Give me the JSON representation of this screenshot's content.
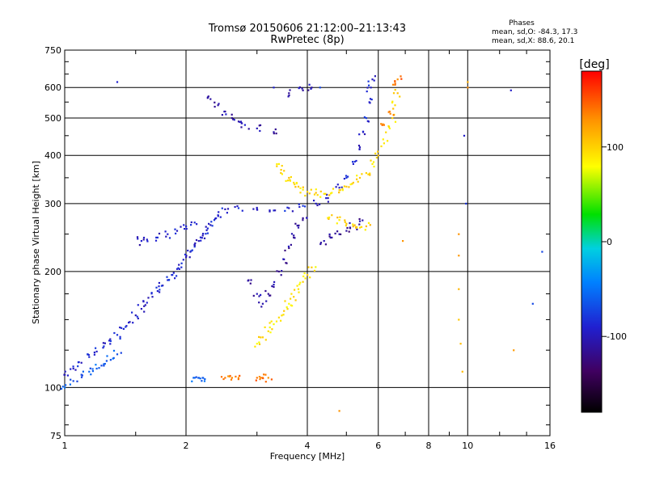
{
  "chart_data": {
    "type": "scatter",
    "title": "Tromsø 20150606 21:12:00–21:13:43",
    "subtitle": "RwPretec (8p)",
    "xlabel": "Frequency [MHz]",
    "ylabel": "Stationary phase Virtual Height [km]",
    "x_scale": "log",
    "y_scale": "log",
    "xlim": [
      1,
      16
    ],
    "ylim": [
      75,
      750
    ],
    "x_ticks": [
      1,
      2,
      4,
      6,
      8,
      10,
      16
    ],
    "x_tick_labels": [
      "1",
      "2",
      "4",
      "6",
      "8",
      "10",
      "16"
    ],
    "y_ticks": [
      75,
      100,
      200,
      300,
      400,
      500,
      600,
      750
    ],
    "y_tick_labels": [
      "75",
      "100",
      "200",
      "300",
      "400",
      "500",
      "600",
      "750"
    ],
    "grid": true,
    "phase_info": {
      "title": "Phases",
      "line_o": "mean, sd,O: -84.3, 17.3",
      "line_x": "mean, sd,X:  88.6, 20.1"
    },
    "colorbar": {
      "label": "[deg]",
      "range": [
        -180,
        180
      ],
      "ticks": [
        100,
        0,
        -100
      ],
      "tick_labels": [
        "100",
        "0",
        "-100"
      ]
    },
    "traces": [
      {
        "mode": "O",
        "phase": -90,
        "points": [
          [
            1.0,
            108
          ],
          [
            1.05,
            112
          ],
          [
            1.1,
            116
          ],
          [
            1.15,
            120
          ],
          [
            1.2,
            124
          ],
          [
            1.25,
            128
          ],
          [
            1.3,
            132
          ],
          [
            1.35,
            137
          ],
          [
            1.4,
            142
          ],
          [
            1.45,
            148
          ],
          [
            1.5,
            154
          ],
          [
            1.55,
            160
          ],
          [
            1.6,
            166
          ],
          [
            1.65,
            172
          ],
          [
            1.7,
            178
          ],
          [
            1.75,
            184
          ],
          [
            1.8,
            190
          ],
          [
            1.85,
            196
          ],
          [
            1.9,
            203
          ],
          [
            1.95,
            210
          ],
          [
            2.0,
            218
          ],
          [
            2.05,
            225
          ],
          [
            2.1,
            232
          ],
          [
            2.15,
            240
          ],
          [
            2.2,
            248
          ],
          [
            2.25,
            256
          ],
          [
            2.3,
            264
          ],
          [
            2.35,
            272
          ],
          [
            2.4,
            280
          ],
          [
            2.5,
            290
          ],
          [
            2.7,
            292
          ],
          [
            3.0,
            290
          ],
          [
            3.3,
            288
          ],
          [
            3.6,
            292
          ],
          [
            3.9,
            296
          ],
          [
            4.2,
            300
          ],
          [
            4.5,
            310
          ],
          [
            4.8,
            330
          ],
          [
            5.0,
            350
          ],
          [
            5.2,
            380
          ],
          [
            5.4,
            420
          ],
          [
            5.5,
            460
          ],
          [
            5.6,
            500
          ],
          [
            5.7,
            550
          ],
          [
            5.75,
            600
          ],
          [
            5.8,
            630
          ]
        ]
      },
      {
        "mode": "O",
        "phase": -95,
        "points": [
          [
            1.55,
            240
          ],
          [
            1.6,
            242
          ],
          [
            1.7,
            245
          ],
          [
            1.8,
            250
          ],
          [
            1.9,
            255
          ],
          [
            2.0,
            262
          ],
          [
            2.1,
            268
          ]
        ]
      },
      {
        "mode": "O",
        "phase": -105,
        "points": [
          [
            2.3,
            560
          ],
          [
            2.4,
            540
          ],
          [
            2.5,
            520
          ],
          [
            2.6,
            500
          ],
          [
            2.7,
            490
          ],
          [
            2.8,
            480
          ],
          [
            3.0,
            470
          ],
          [
            3.3,
            460
          ],
          [
            3.6,
            580
          ],
          [
            3.9,
            590
          ],
          [
            4.1,
            600
          ]
        ]
      },
      {
        "mode": "O",
        "phase": -110,
        "points": [
          [
            2.9,
            190
          ],
          [
            3.0,
            175
          ],
          [
            3.1,
            165
          ],
          [
            3.2,
            175
          ],
          [
            3.3,
            185
          ],
          [
            3.4,
            200
          ],
          [
            3.5,
            215
          ],
          [
            3.6,
            230
          ],
          [
            3.7,
            245
          ],
          [
            3.8,
            260
          ],
          [
            3.9,
            275
          ]
        ]
      },
      {
        "mode": "O",
        "phase": -115,
        "points": [
          [
            4.4,
            240
          ],
          [
            4.6,
            245
          ],
          [
            4.8,
            250
          ],
          [
            5.0,
            255
          ],
          [
            5.2,
            262
          ],
          [
            5.4,
            270
          ]
        ]
      },
      {
        "mode": "X",
        "phase": 90,
        "points": [
          [
            3.0,
            130
          ],
          [
            3.1,
            135
          ],
          [
            3.2,
            140
          ],
          [
            3.3,
            146
          ],
          [
            3.4,
            152
          ],
          [
            3.5,
            158
          ],
          [
            3.6,
            165
          ],
          [
            3.7,
            172
          ],
          [
            3.8,
            180
          ],
          [
            3.9,
            188
          ],
          [
            4.0,
            196
          ],
          [
            4.1,
            205
          ]
        ]
      },
      {
        "mode": "X",
        "phase": 95,
        "points": [
          [
            3.4,
            380
          ],
          [
            3.5,
            365
          ],
          [
            3.6,
            350
          ],
          [
            3.7,
            340
          ],
          [
            3.8,
            332
          ],
          [
            3.9,
            326
          ],
          [
            4.0,
            322
          ],
          [
            4.2,
            320
          ],
          [
            4.4,
            318
          ],
          [
            4.6,
            320
          ],
          [
            4.8,
            325
          ],
          [
            5.0,
            332
          ],
          [
            5.2,
            340
          ],
          [
            5.4,
            350
          ],
          [
            5.6,
            360
          ],
          [
            5.8,
            380
          ],
          [
            6.0,
            400
          ],
          [
            6.2,
            430
          ],
          [
            6.4,
            470
          ],
          [
            6.5,
            500
          ],
          [
            6.6,
            540
          ],
          [
            6.7,
            580
          ]
        ]
      },
      {
        "mode": "X",
        "phase": 100,
        "points": [
          [
            4.6,
            280
          ],
          [
            4.8,
            272
          ],
          [
            5.0,
            266
          ],
          [
            5.2,
            262
          ],
          [
            5.4,
            260
          ],
          [
            5.6,
            262
          ]
        ]
      },
      {
        "mode": "X",
        "phase": 140,
        "points": [
          [
            2.5,
            106
          ],
          [
            2.6,
            106
          ],
          [
            2.7,
            106
          ],
          [
            3.0,
            106
          ],
          [
            3.1,
            106
          ],
          [
            3.2,
            106
          ],
          [
            6.2,
            480
          ],
          [
            6.4,
            520
          ],
          [
            6.6,
            610
          ],
          [
            6.7,
            630
          ]
        ]
      },
      {
        "mode": "O",
        "phase": -60,
        "points": [
          [
            1.0,
            100
          ],
          [
            1.05,
            104
          ],
          [
            1.1,
            108
          ],
          [
            1.15,
            110
          ],
          [
            1.2,
            112
          ],
          [
            1.25,
            114
          ],
          [
            1.3,
            118
          ],
          [
            1.35,
            122
          ],
          [
            2.1,
            106
          ],
          [
            2.15,
            106
          ],
          [
            2.2,
            106
          ]
        ]
      },
      {
        "mode": "?",
        "phase": 120,
        "points": [
          [
            9.5,
            250
          ],
          [
            9.5,
            220
          ],
          [
            9.5,
            180
          ],
          [
            9.5,
            150
          ],
          [
            9.6,
            130
          ],
          [
            9.7,
            110
          ],
          [
            10.0,
            600
          ],
          [
            10.0,
            620
          ],
          [
            13.0,
            125
          ],
          [
            4.8,
            87
          ],
          [
            6.9,
            240
          ]
        ]
      },
      {
        "mode": "?",
        "phase": -80,
        "points": [
          [
            1.35,
            620
          ],
          [
            3.3,
            600
          ],
          [
            4.3,
            600
          ],
          [
            9.8,
            450
          ],
          [
            9.9,
            300
          ],
          [
            14.5,
            165
          ],
          [
            15.3,
            225
          ],
          [
            12.8,
            590
          ]
        ]
      }
    ]
  }
}
